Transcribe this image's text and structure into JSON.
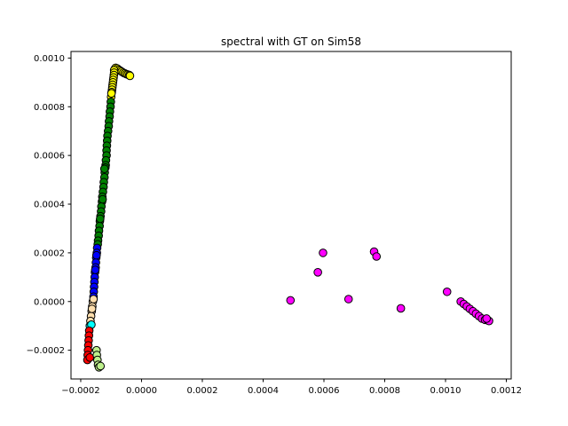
{
  "chart_data": {
    "type": "scatter",
    "title": "spectral with GT on Sim58",
    "xlabel": "",
    "ylabel": "",
    "xlim": [
      -0.000232,
      0.001216
    ],
    "ylim": [
      -0.000318,
      0.001027
    ],
    "xticks": [
      {
        "value": -0.0002,
        "label": "−0.0002"
      },
      {
        "value": 0.0,
        "label": "0.0000"
      },
      {
        "value": 0.0002,
        "label": "0.0002"
      },
      {
        "value": 0.0004,
        "label": "0.0004"
      },
      {
        "value": 0.0006,
        "label": "0.0006"
      },
      {
        "value": 0.0008,
        "label": "0.0008"
      },
      {
        "value": 0.001,
        "label": "0.0010"
      },
      {
        "value": 0.0012,
        "label": "0.0012"
      }
    ],
    "yticks": [
      {
        "value": -0.0002,
        "label": "−0.0002"
      },
      {
        "value": 0.0,
        "label": "0.0000"
      },
      {
        "value": 0.0002,
        "label": "0.0002"
      },
      {
        "value": 0.0004,
        "label": "0.0004"
      },
      {
        "value": 0.0006,
        "label": "0.0006"
      },
      {
        "value": 0.0008,
        "label": "0.0008"
      },
      {
        "value": 0.001,
        "label": "0.0010"
      }
    ],
    "grid": false,
    "legend": "none",
    "series": [
      {
        "color": "#ffff00",
        "points": [
          [
            -8.8e-05,
            0.000955
          ],
          [
            -8.5e-05,
            0.00096
          ],
          [
            -8e-05,
            0.000957
          ],
          [
            -7.5e-05,
            0.000952
          ],
          [
            -7e-05,
            0.000948
          ],
          [
            -6.5e-05,
            0.000944
          ],
          [
            -6e-05,
            0.00094
          ],
          [
            -5.5e-05,
            0.000937
          ],
          [
            -5e-05,
            0.000934
          ],
          [
            -4.5e-05,
            0.000932
          ],
          [
            -4e-05,
            0.00093
          ],
          [
            -3.8e-05,
            0.000927
          ],
          [
            -9e-05,
            0.00095
          ],
          [
            -9e-05,
            0.00094
          ],
          [
            -9.1e-05,
            0.00093
          ],
          [
            -9.2e-05,
            0.00092
          ],
          [
            -9.3e-05,
            0.00091
          ],
          [
            -9.4e-05,
            0.0009
          ],
          [
            -9.5e-05,
            0.00089
          ],
          [
            -9.6e-05,
            0.00088
          ],
          [
            -9.7e-05,
            0.00087
          ],
          [
            -9.8e-05,
            0.00086
          ],
          [
            -0.0001,
            0.00084
          ],
          [
            -9.9e-05,
            0.000855
          ]
        ]
      },
      {
        "color": "#008000",
        "points": [
          [
            -0.000101,
            0.00082
          ],
          [
            -0.000102,
            0.0008
          ],
          [
            -0.000104,
            0.00078
          ],
          [
            -0.000105,
            0.00076
          ],
          [
            -0.000107,
            0.00074
          ],
          [
            -0.000108,
            0.00072
          ],
          [
            -0.00011,
            0.0007
          ],
          [
            -0.000112,
            0.00068
          ],
          [
            -0.000113,
            0.00066
          ],
          [
            -0.000114,
            0.00064
          ],
          [
            -0.000115,
            0.00062
          ],
          [
            -0.000115,
            0.0006
          ],
          [
            -0.000117,
            0.00058
          ],
          [
            -0.000118,
            0.00056
          ],
          [
            -0.000119,
            0.00055
          ],
          [
            -0.000121,
            0.00053
          ],
          [
            -0.000122,
            0.00051
          ],
          [
            -0.000124,
            0.00049
          ],
          [
            -0.000125,
            0.00047
          ],
          [
            -0.000127,
            0.00045
          ],
          [
            -0.000129,
            0.00043
          ],
          [
            -0.00013,
            0.00041
          ],
          [
            -0.000132,
            0.00039
          ],
          [
            -0.000133,
            0.00037
          ],
          [
            -0.000135,
            0.00035
          ],
          [
            -0.000137,
            0.00033
          ],
          [
            -0.000138,
            0.00031
          ],
          [
            -0.00014,
            0.00029
          ],
          [
            -0.000141,
            0.00027
          ],
          [
            -0.000143,
            0.00025
          ],
          [
            -0.000144,
            0.000235
          ],
          [
            -0.000122,
            0.000545
          ],
          [
            -0.000128,
            0.00042
          ],
          [
            -0.000136,
            0.00034
          ]
        ]
      },
      {
        "color": "#0000ff",
        "points": [
          [
            -0.000146,
            0.00022
          ],
          [
            -0.000147,
            0.0002
          ],
          [
            -0.000149,
            0.00018
          ],
          [
            -0.00015,
            0.00016
          ],
          [
            -0.000151,
            0.00014
          ],
          [
            -0.000153,
            0.00012
          ],
          [
            -0.000154,
            0.0001
          ],
          [
            -0.000155,
            8e-05
          ],
          [
            -0.000156,
            6e-05
          ],
          [
            -0.000157,
            4e-05
          ],
          [
            -0.000158,
            2e-05
          ],
          [
            -0.000148,
            0.00019
          ],
          [
            -0.000152,
            0.00013
          ]
        ]
      },
      {
        "color": "#ffdead",
        "points": [
          [
            -0.00016,
            0.0
          ],
          [
            -0.000162,
            -2e-05
          ],
          [
            -0.000164,
            -4e-05
          ],
          [
            -0.000166,
            -6e-05
          ],
          [
            -0.000168,
            -8e-05
          ],
          [
            -0.000158,
            1e-05
          ],
          [
            -0.000163,
            -3e-05
          ]
        ]
      },
      {
        "color": "#00ffff",
        "points": [
          [
            -0.00017,
            -0.0001
          ],
          [
            -0.000165,
            -9.5e-05
          ]
        ]
      },
      {
        "color": "#ff0000",
        "points": [
          [
            -0.000172,
            -0.00012
          ],
          [
            -0.000173,
            -0.00014
          ],
          [
            -0.000174,
            -0.00016
          ],
          [
            -0.000175,
            -0.00018
          ],
          [
            -0.000176,
            -0.0002
          ],
          [
            -0.000177,
            -0.00022
          ],
          [
            -0.000178,
            -0.00024
          ],
          [
            -0.00017,
            -0.00023
          ]
        ]
      },
      {
        "color": "#bdf08c",
        "points": [
          [
            -0.000148,
            -0.0002
          ],
          [
            -0.000147,
            -0.00022
          ],
          [
            -0.000145,
            -0.00024
          ],
          [
            -0.000143,
            -0.00026
          ],
          [
            -0.00014,
            -0.00027
          ],
          [
            -0.000135,
            -0.000265
          ]
        ]
      },
      {
        "color": "#ff00ff",
        "points": [
          [
            0.00049,
            5e-06
          ],
          [
            0.00058,
            0.00012
          ],
          [
            0.000597,
            0.0002
          ],
          [
            0.000681,
            1e-05
          ],
          [
            0.000765,
            0.000205
          ],
          [
            0.000773,
            0.000185
          ],
          [
            0.000853,
            -2.8e-05
          ],
          [
            0.001005,
            4e-05
          ],
          [
            0.00105,
            0.0
          ],
          [
            0.00106,
            -1e-05
          ],
          [
            0.00107,
            -2e-05
          ],
          [
            0.00108,
            -3e-05
          ],
          [
            0.00109,
            -4e-05
          ],
          [
            0.0011,
            -5e-05
          ],
          [
            0.00111,
            -6e-05
          ],
          [
            0.00112,
            -7e-05
          ],
          [
            0.00113,
            -7.5e-05
          ],
          [
            0.00114,
            -7.8e-05
          ],
          [
            0.001143,
            -8e-05
          ],
          [
            0.001135,
            -7e-05
          ]
        ]
      }
    ]
  }
}
